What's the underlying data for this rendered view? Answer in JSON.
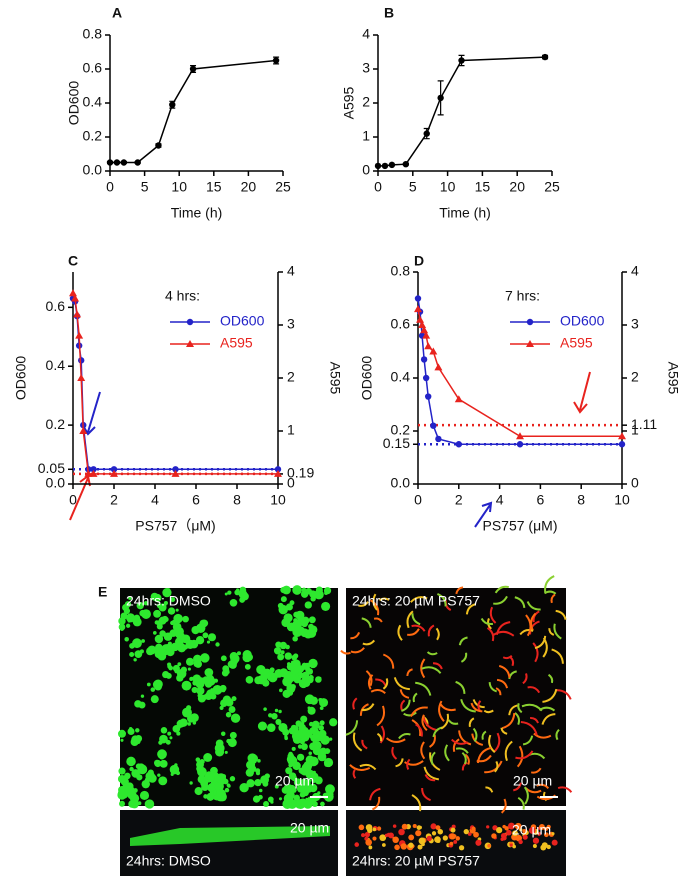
{
  "chart_data": [
    {
      "type": "line",
      "panel": "A",
      "y_label": "OD600",
      "x_label": "Time (h)",
      "x": [
        0,
        1,
        2,
        4,
        7,
        9,
        12,
        24
      ],
      "series": [
        {
          "values": [
            0.05,
            0.05,
            0.05,
            0.05,
            0.15,
            0.39,
            0.6,
            0.65
          ],
          "errors": [
            0.005,
            0.005,
            0.005,
            0.005,
            0.01,
            0.02,
            0.02,
            0.02
          ],
          "color": "#000000",
          "marker": "circle"
        }
      ],
      "xlim": [
        0,
        25
      ],
      "xticks": [
        0,
        5,
        10,
        15,
        20,
        25
      ],
      "ylim": [
        0,
        0.8
      ],
      "yticks": [
        {
          "value": 0,
          "label": "0.0"
        },
        0.2,
        0.4,
        0.6,
        0.8
      ]
    },
    {
      "type": "line",
      "panel": "B",
      "y_label": "A595",
      "x_label": "Time (h)",
      "x": [
        0,
        1,
        2,
        4,
        7,
        9,
        12,
        24
      ],
      "series": [
        {
          "values": [
            0.15,
            0.15,
            0.18,
            0.2,
            1.1,
            2.15,
            3.25,
            3.35
          ],
          "errors": [
            0.02,
            0.02,
            0.02,
            0.02,
            0.15,
            0.5,
            0.15,
            0.05
          ],
          "color": "#000000",
          "marker": "circle"
        }
      ],
      "xlim": [
        0,
        25
      ],
      "xticks": [
        0,
        5,
        10,
        15,
        20,
        25
      ],
      "ylim": [
        0,
        4
      ],
      "yticks": [
        0,
        1,
        2,
        3,
        4
      ]
    },
    {
      "type": "line",
      "panel": "C",
      "y_label": "OD600",
      "y2_label": "A595",
      "x_label": "PS757（μM)",
      "legend_title": "4 hrs:",
      "x": [
        0,
        0.1,
        0.2,
        0.3,
        0.4,
        0.5,
        0.75,
        1,
        2,
        5,
        10
      ],
      "series": [
        {
          "name": "OD600",
          "color": "#2323c8",
          "marker": "circle",
          "values": [
            0.63,
            0.62,
            0.57,
            0.47,
            0.42,
            0.2,
            0.05,
            0.05,
            0.05,
            0.05,
            0.05
          ]
        },
        {
          "name": "A595",
          "color": "#e8231e",
          "marker": "triangle",
          "axis": "y2",
          "values": [
            3.6,
            3.5,
            3.2,
            2.8,
            2.0,
            1.0,
            0.19,
            0.19,
            0.19,
            0.19,
            0.19
          ]
        }
      ],
      "reference_lines": [
        {
          "value": 0.05,
          "color": "#2323c8"
        },
        {
          "value": 0.19,
          "axis": "y2",
          "color": "#e8231e"
        }
      ],
      "xlim": [
        0,
        10
      ],
      "xticks": [
        0,
        2,
        4,
        6,
        8,
        10
      ],
      "ylim": [
        0,
        0.72
      ],
      "yticks": [
        {
          "value": 0,
          "label": "0.0"
        },
        0.05,
        0.2,
        0.4,
        0.6
      ],
      "y2lim": [
        0,
        4
      ],
      "y2ticks": [
        0,
        0.19,
        1,
        2,
        3,
        4
      ]
    },
    {
      "type": "line",
      "panel": "D",
      "y_label": "OD600",
      "y2_label": "A595",
      "x_label": "PS757 (μM)",
      "legend_title": "7 hrs:",
      "x": [
        0,
        0.1,
        0.2,
        0.3,
        0.4,
        0.5,
        0.75,
        1,
        2,
        5,
        10
      ],
      "series": [
        {
          "name": "OD600",
          "color": "#2323c8",
          "marker": "circle",
          "values": [
            0.7,
            0.65,
            0.56,
            0.47,
            0.4,
            0.33,
            0.22,
            0.17,
            0.15,
            0.15,
            0.15
          ]
        },
        {
          "name": "A595",
          "color": "#e8231e",
          "marker": "triangle",
          "axis": "y2",
          "values": [
            3.3,
            3.1,
            3.0,
            2.9,
            2.8,
            2.6,
            2.5,
            2.2,
            1.6,
            0.9,
            0.9
          ]
        }
      ],
      "reference_lines": [
        {
          "value": 0.15,
          "color": "#2323c8"
        },
        {
          "value": 1.11,
          "axis": "y2",
          "color": "#e8231e"
        }
      ],
      "xlim": [
        0,
        10
      ],
      "xticks": [
        0,
        2,
        4,
        6,
        8,
        10
      ],
      "ylim": [
        0,
        0.8
      ],
      "yticks": [
        {
          "value": 0,
          "label": "0.0"
        },
        0.15,
        0.2,
        0.4,
        0.6,
        0.8
      ],
      "y2lim": [
        0,
        4
      ],
      "y2ticks": [
        0,
        1,
        1.11,
        2,
        3,
        4
      ]
    }
  ],
  "panel_E": {
    "label": "E",
    "left_caption": "24hrs: DMSO",
    "right_caption": "24hrs: 20 µM PS757",
    "scale": "20 µm"
  }
}
